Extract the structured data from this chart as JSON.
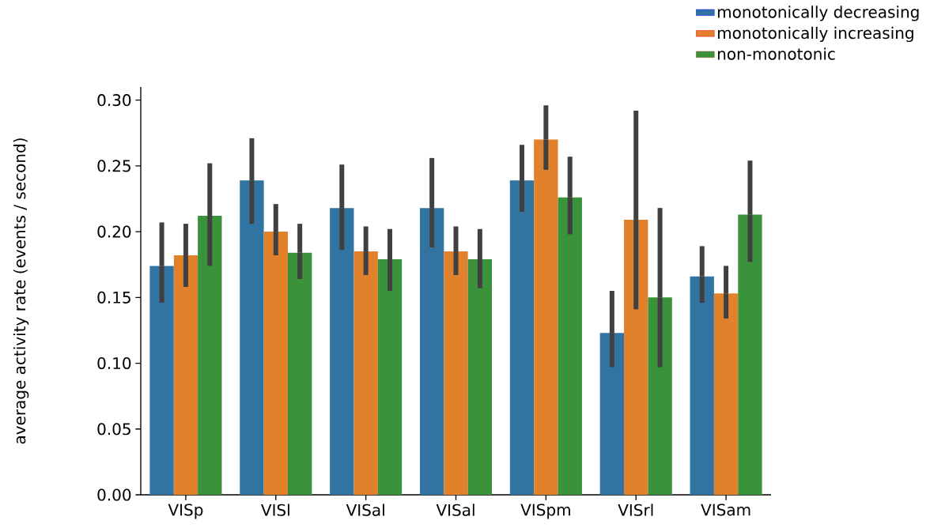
{
  "chart_data": {
    "type": "bar",
    "ylabel": "average activity rate (events / second)",
    "categories": [
      "VISp",
      "VISl",
      "VISal",
      "VISal",
      "VISpm",
      "VISrl",
      "VISam"
    ],
    "series": [
      {
        "name": "monotonically decreasing",
        "color": "#3274a1",
        "values": [
          0.174,
          0.239,
          0.218,
          0.218,
          0.239,
          0.123,
          0.166
        ],
        "errors": [
          [
            0.146,
            0.207
          ],
          [
            0.206,
            0.271
          ],
          [
            0.186,
            0.251
          ],
          [
            0.188,
            0.256
          ],
          [
            0.215,
            0.266
          ],
          [
            0.097,
            0.155
          ],
          [
            0.146,
            0.189
          ]
        ]
      },
      {
        "name": "monotonically increasing",
        "color": "#e1812c",
        "values": [
          0.182,
          0.2,
          0.185,
          0.185,
          0.27,
          0.209,
          0.153
        ],
        "errors": [
          [
            0.158,
            0.206
          ],
          [
            0.182,
            0.221
          ],
          [
            0.167,
            0.204
          ],
          [
            0.167,
            0.204
          ],
          [
            0.247,
            0.296
          ],
          [
            0.141,
            0.292
          ],
          [
            0.134,
            0.174
          ]
        ]
      },
      {
        "name": "non-monotonic",
        "color": "#3a923a",
        "values": [
          0.212,
          0.184,
          0.179,
          0.179,
          0.226,
          0.15,
          0.213
        ],
        "errors": [
          [
            0.174,
            0.252
          ],
          [
            0.164,
            0.206
          ],
          [
            0.155,
            0.202
          ],
          [
            0.157,
            0.202
          ],
          [
            0.198,
            0.257
          ],
          [
            0.097,
            0.218
          ],
          [
            0.177,
            0.254
          ]
        ]
      }
    ],
    "ylim": [
      0,
      0.31
    ],
    "yticks": [
      {
        "value": 0,
        "label": "0.00"
      },
      {
        "value": 0.05,
        "label": "0.05"
      },
      {
        "value": 0.1,
        "label": "0.10"
      },
      {
        "value": 0.15,
        "label": "0.15"
      },
      {
        "value": 0.2,
        "label": "0.20"
      },
      {
        "value": 0.25,
        "label": "0.25"
      },
      {
        "value": 0.3,
        "label": "0.30"
      }
    ],
    "grid": false,
    "legend": "top right"
  }
}
